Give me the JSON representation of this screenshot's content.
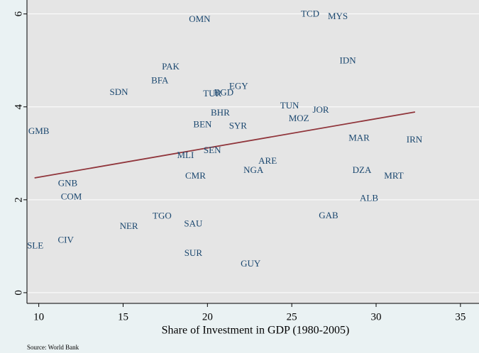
{
  "chart_data": {
    "type": "scatter",
    "x_label": "Share of Investment in GDP (1980-2005)",
    "source": "Source: World Bank",
    "xlim": [
      9.3,
      36.1
    ],
    "ylim": [
      -0.23,
      6.3
    ],
    "xticks": [
      10,
      15,
      20,
      25,
      30,
      35
    ],
    "yticks": [
      0,
      2,
      4,
      6
    ],
    "grid": true,
    "series": [
      {
        "color": "#1a476f",
        "labels": [
          "OMN",
          "TCD",
          "MYS",
          "PAK",
          "IDN",
          "BFA",
          "SDN",
          "TUR",
          "BGD",
          "EGY",
          "TUN",
          "JOR",
          "BHR",
          "MOZ",
          "BEN",
          "SYR",
          "GMB",
          "MAR",
          "IRN",
          "MLI",
          "SEN",
          "ARE",
          "NGA",
          "DZA",
          "CMR",
          "MRT",
          "GNB",
          "COM",
          "ALB",
          "TGO",
          "GAB",
          "NER",
          "SAU",
          "CIV",
          "SLE",
          "SUR",
          "GUY"
        ],
        "x": [
          19.54,
          26.09,
          27.73,
          17.82,
          28.32,
          17.18,
          14.75,
          20.29,
          20.97,
          21.85,
          24.87,
          26.72,
          20.76,
          25.42,
          19.71,
          21.81,
          10.0,
          28.99,
          32.27,
          18.7,
          20.29,
          23.57,
          22.73,
          29.16,
          19.29,
          31.05,
          11.72,
          11.93,
          29.58,
          17.31,
          27.18,
          15.34,
          19.16,
          11.6,
          9.79,
          19.16,
          22.56
        ],
        "values": [
          5.87,
          5.99,
          5.93,
          4.85,
          4.98,
          4.55,
          4.3,
          4.27,
          4.29,
          4.43,
          4.01,
          3.92,
          3.86,
          3.74,
          3.61,
          3.58,
          3.46,
          3.32,
          3.28,
          2.94,
          3.05,
          2.82,
          2.62,
          2.62,
          2.5,
          2.5,
          2.34,
          2.05,
          2.02,
          1.64,
          1.65,
          1.42,
          1.47,
          1.12,
          1.0,
          0.84,
          0.61
        ]
      }
    ],
    "fit_line": {
      "x": [
        9.75,
        32.31
      ],
      "values": [
        2.47,
        3.89
      ],
      "color": "#90353b"
    }
  }
}
